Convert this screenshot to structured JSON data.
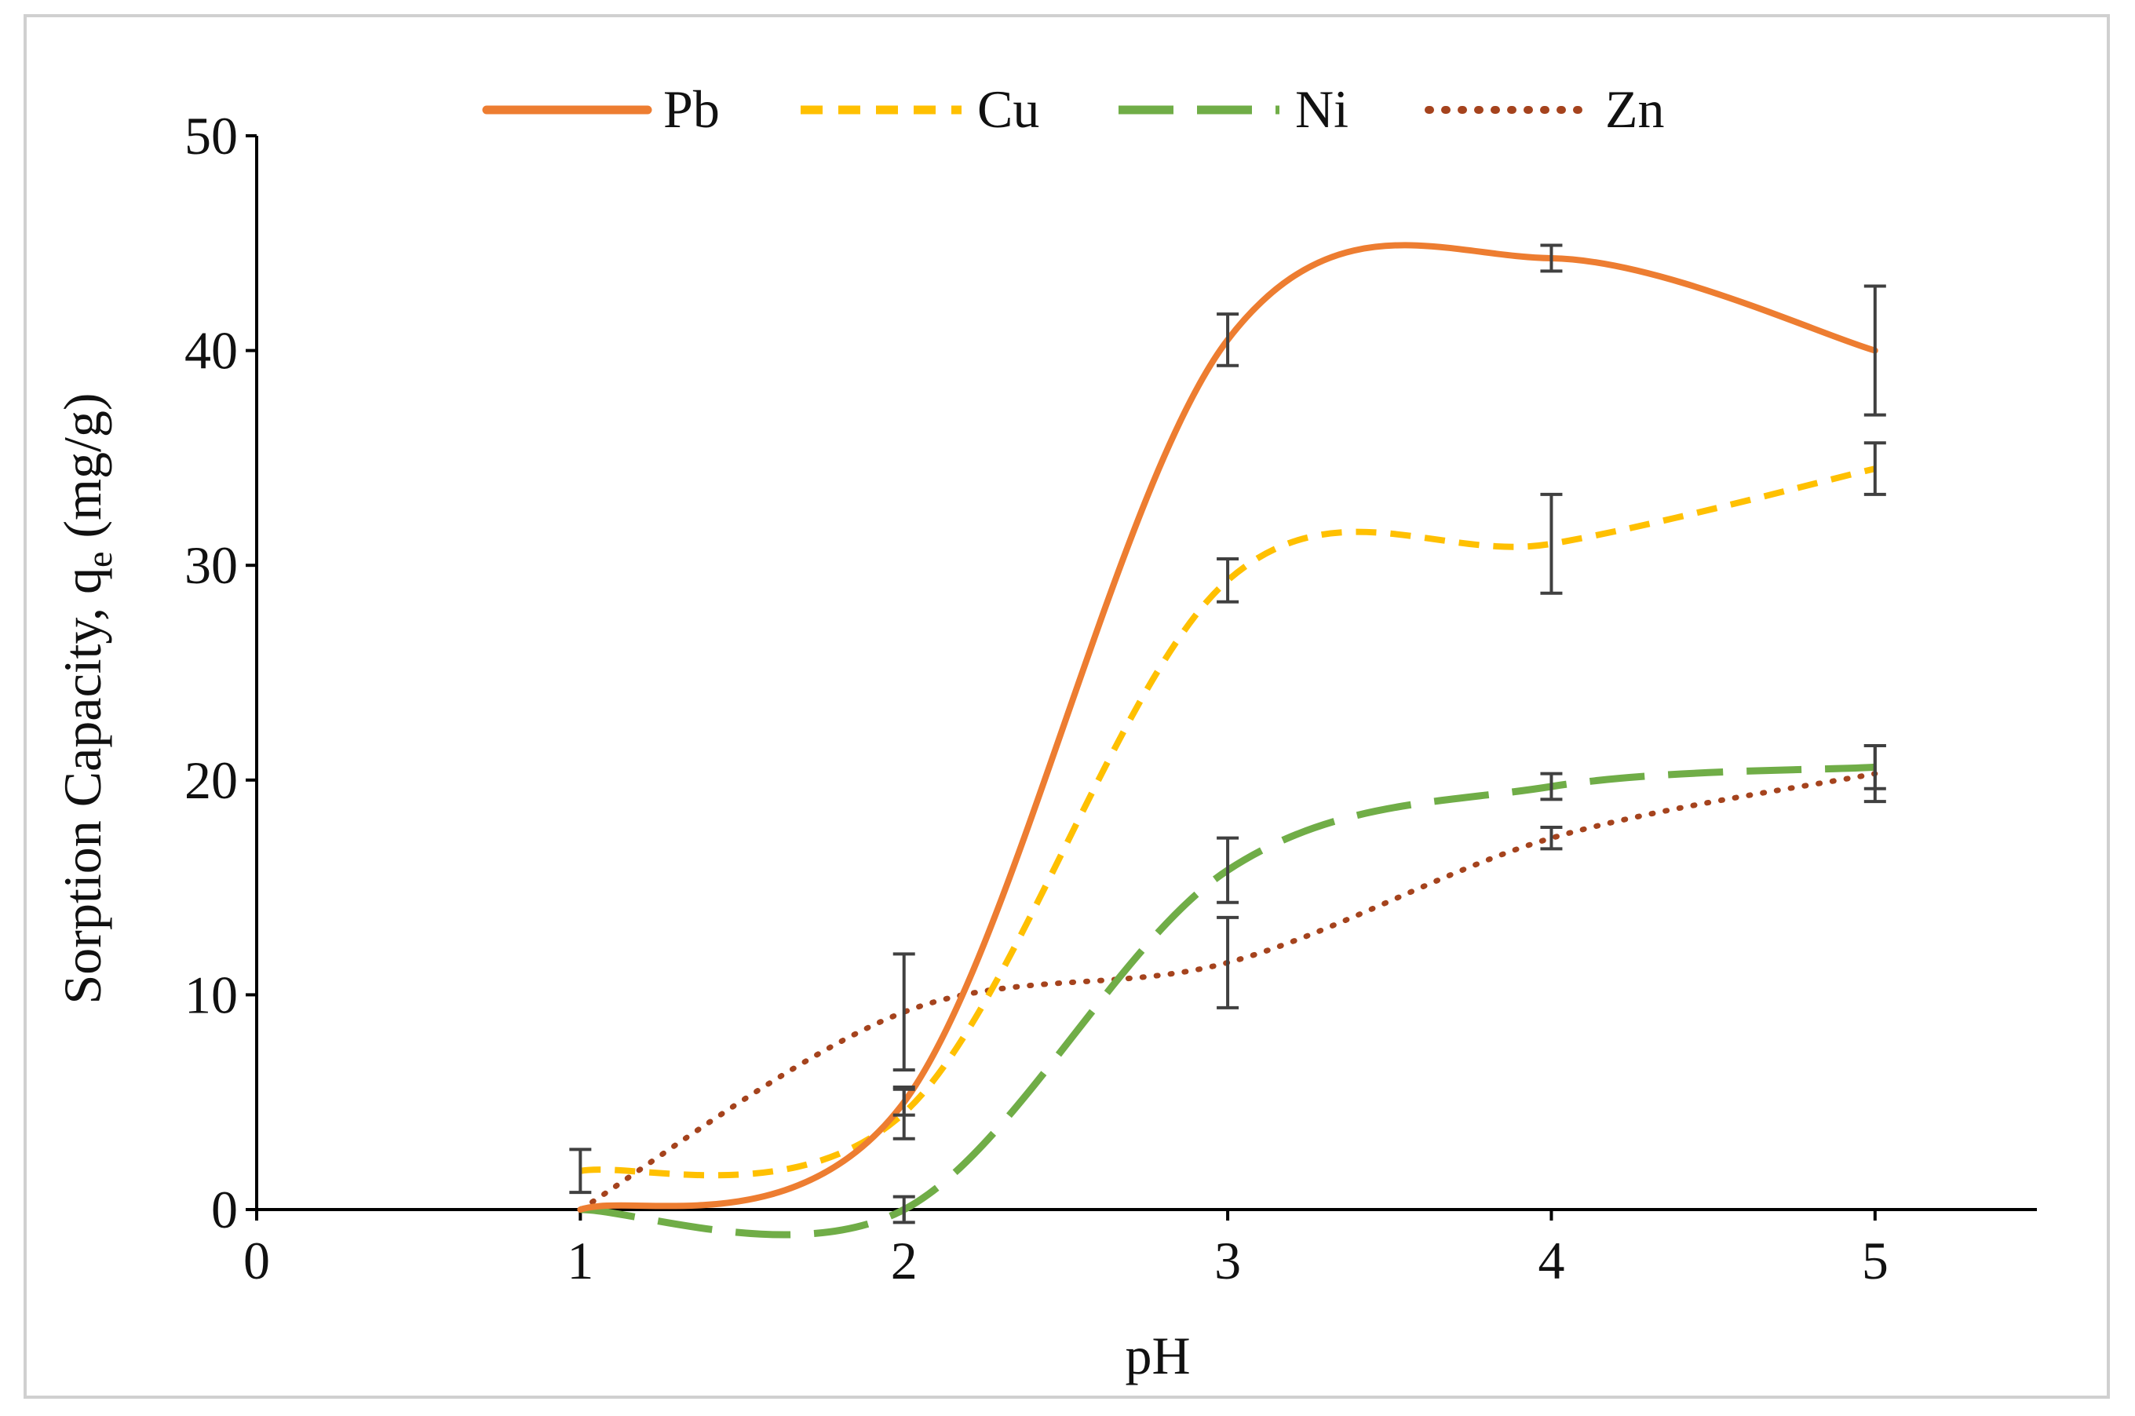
{
  "chart_data": {
    "type": "line",
    "title": "",
    "xlabel": "pH",
    "ylabel_main": "Sorption Capacity, q",
    "ylabel_sub": "e",
    "ylabel_unit": " (mg/g)",
    "xlim": [
      0,
      5.5
    ],
    "ylim": [
      0,
      50
    ],
    "x_ticks": [
      0,
      1,
      2,
      3,
      4,
      5
    ],
    "y_ticks": [
      0,
      10,
      20,
      30,
      40,
      50
    ],
    "legend_position": "top",
    "x": [
      1,
      2,
      3,
      4,
      5
    ],
    "series": [
      {
        "name": "Pb",
        "color": "#ED7D31",
        "dash": "solid",
        "values": [
          0,
          5,
          40.5,
          44.3,
          40
        ],
        "errors": [
          0,
          0.6,
          1.2,
          0.6,
          3
        ]
      },
      {
        "name": "Cu",
        "color": "#FFC000",
        "dash": "short",
        "values": [
          1.8,
          4.5,
          29.3,
          31,
          34.5
        ],
        "errors": [
          1,
          1.2,
          1,
          2.3,
          1.2
        ]
      },
      {
        "name": "Ni",
        "color": "#70AD47",
        "dash": "long",
        "values": [
          0,
          0,
          15.8,
          19.7,
          20.6
        ],
        "errors": [
          0,
          0.6,
          1.5,
          0.6,
          1
        ]
      },
      {
        "name": "Zn",
        "color": "#A5431D",
        "dash": "dot",
        "values": [
          0,
          9.2,
          11.5,
          17.3,
          20.3
        ],
        "errors": [
          0,
          2.7,
          2.1,
          0.5,
          1.3
        ]
      }
    ]
  }
}
